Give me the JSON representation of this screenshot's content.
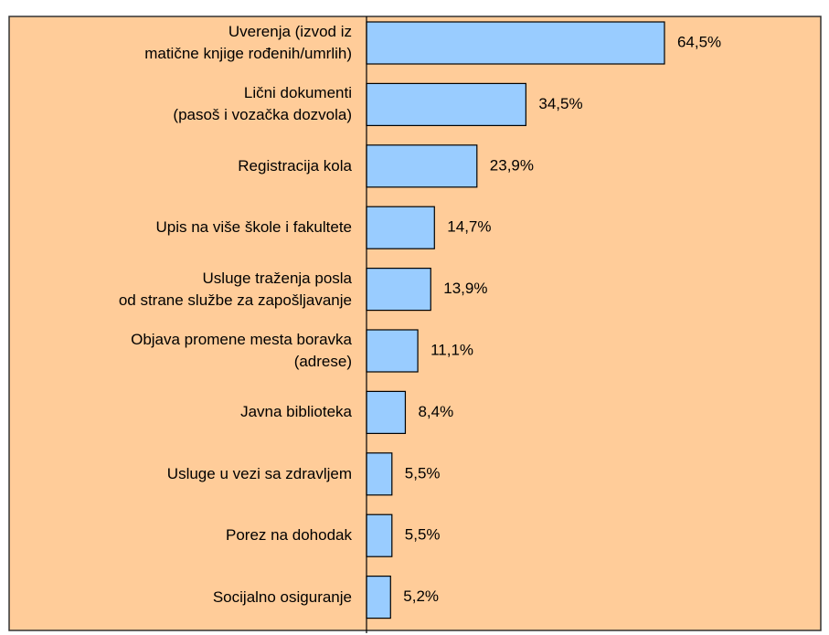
{
  "chart_data": {
    "type": "bar",
    "orientation": "horizontal",
    "categories": [
      "Uverenja (izvod iz\nmatične knjige rođenih/umrlih)",
      "Lični dokumenti\n(pasoš i vozačka dozvola)",
      "Registracija kola",
      "Upis na više škole i fakultete",
      "Usluge traženja posla\nod strane službe za zapošljavanje",
      "Objava promene mesta boravka\n(adrese)",
      "Javna biblioteka",
      "Usluge u vezi sa zdravljem",
      "Porez na dohodak",
      "Socijalno osiguranje"
    ],
    "values": [
      64.5,
      34.5,
      23.9,
      14.7,
      13.9,
      11.1,
      8.4,
      5.5,
      5.5,
      5.2
    ],
    "value_labels": [
      "64,5%",
      "34,5%",
      "23,9%",
      "14,7%",
      "13,9%",
      "11,1%",
      "8,4%",
      "5,5%",
      "5,5%",
      "5,2%"
    ],
    "color": "#99ccff",
    "background": "#ffcc99"
  }
}
